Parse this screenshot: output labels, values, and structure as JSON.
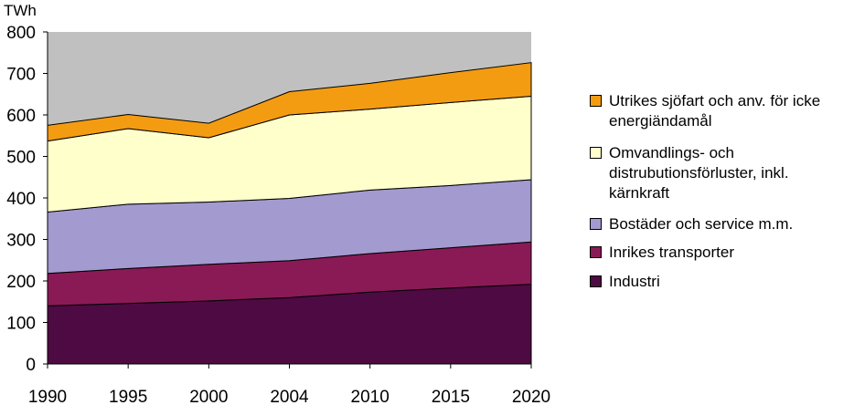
{
  "chart_data": {
    "type": "area",
    "stacked": true,
    "ylabel": "TWh",
    "ylim": [
      0,
      800
    ],
    "yticks": [
      0,
      100,
      200,
      300,
      400,
      500,
      600,
      700,
      800
    ],
    "x": [
      "1990",
      "1995",
      "2000",
      "2004",
      "2010",
      "2015",
      "2020"
    ],
    "grid": false,
    "legend_position": "right",
    "series": [
      {
        "name": "Industri",
        "color": "#4e0a42",
        "values": [
          140,
          146,
          152,
          160,
          173,
          183,
          192
        ]
      },
      {
        "name": "Inrikes transporter",
        "color": "#8a1a56",
        "values": [
          78,
          84,
          88,
          89,
          93,
          97,
          102
        ]
      },
      {
        "name": "Bostäder och service m.m.",
        "color": "#a39ad0",
        "values": [
          148,
          155,
          150,
          150,
          153,
          150,
          150
        ]
      },
      {
        "name": "Omvandlings- och distrubutionsförluster, inkl. kärnkraft",
        "color": "#ffffcc",
        "values": [
          171,
          182,
          155,
          201,
          195,
          200,
          201
        ]
      },
      {
        "name": "Utrikes sjöfart och anv. för icke energiändamål",
        "color": "#f39c12",
        "values": [
          38,
          34,
          35,
          56,
          62,
          72,
          81
        ]
      }
    ]
  },
  "legend": [
    {
      "key": "utrikes",
      "lines": [
        "Utrikes sjöfart och anv. för icke",
        "energiändamål"
      ],
      "color": "#f39c12"
    },
    {
      "key": "omvandling",
      "lines": [
        "Omvandlings- och",
        "distrubutionsförluster, inkl.",
        "kärnkraft"
      ],
      "color": "#ffffcc"
    },
    {
      "key": "bostader",
      "lines": [
        "Bostäder och service m.m."
      ],
      "color": "#a39ad0"
    },
    {
      "key": "transporter",
      "lines": [
        "Inrikes transporter"
      ],
      "color": "#8a1a56"
    },
    {
      "key": "industri",
      "lines": [
        "Industri"
      ],
      "color": "#4e0a42"
    }
  ],
  "plot_background": "#c0c0c0"
}
